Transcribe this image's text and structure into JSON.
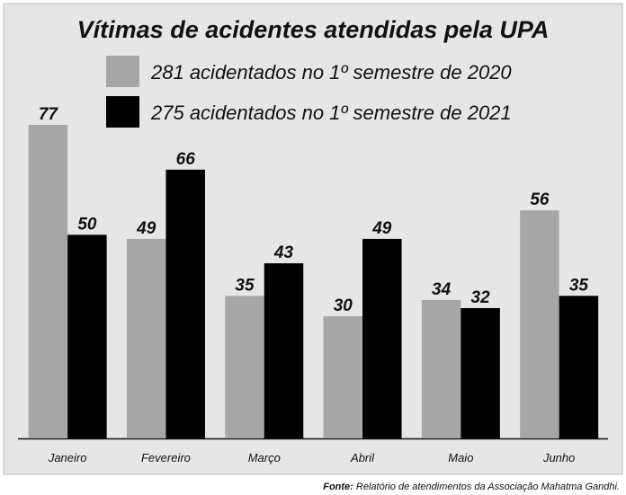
{
  "chart_data": {
    "type": "bar",
    "title": "Vítimas de acidentes atendidas pela UPA",
    "categories": [
      "Janeiro",
      "Fevereiro",
      "Março",
      "Abril",
      "Maio",
      "Junho"
    ],
    "series": [
      {
        "name": "281 acidentados no 1º semestre de 2020",
        "color": "#a6a6a6",
        "values": [
          77,
          49,
          35,
          30,
          34,
          56
        ]
      },
      {
        "name": "275 acidentados no 1º semestre de 2021",
        "color": "#000000",
        "values": [
          50,
          66,
          43,
          49,
          32,
          35
        ]
      }
    ],
    "source": {
      "label": "Fonte:",
      "text": "Relatório de atendimentos da Associação Mahatma Gandhi."
    }
  }
}
